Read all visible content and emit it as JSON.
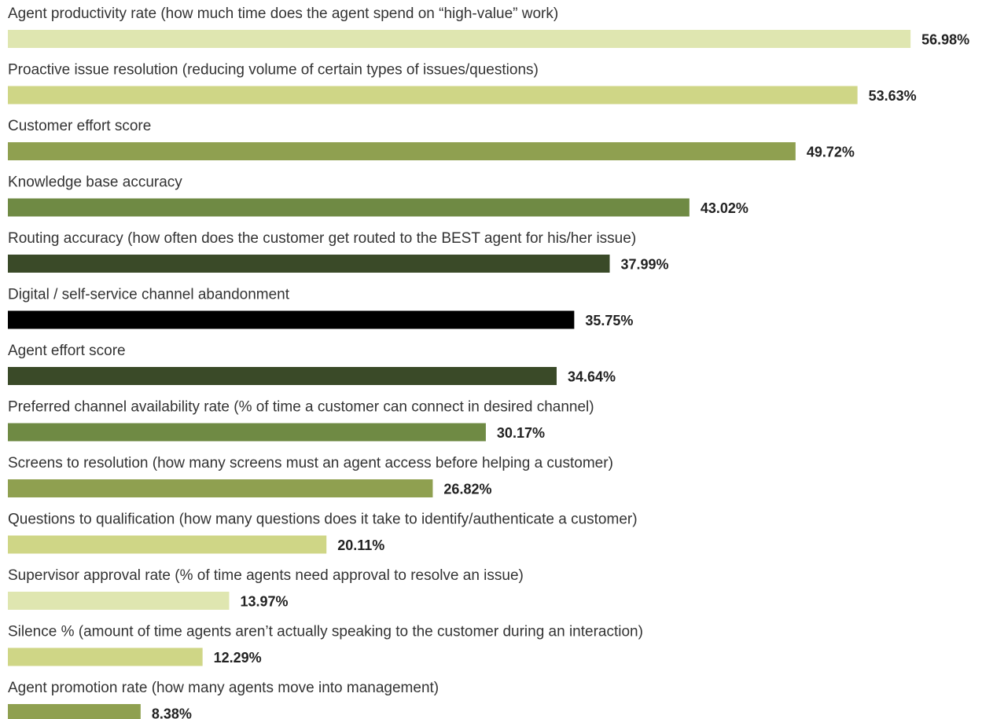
{
  "chart_data": {
    "type": "bar",
    "orientation": "horizontal",
    "categories": [
      "Agent productivity rate (how much time does the agent spend on “high-value” work)",
      "Proactive issue resolution (reducing volume of certain types of issues/questions)",
      "Customer effort score",
      "Knowledge base accuracy",
      "Routing accuracy (how often does the customer get routed to the BEST agent for his/her issue)",
      "Digital / self-service channel abandonment",
      "Agent effort score",
      "Preferred channel availability rate (% of time a customer can connect in desired channel)",
      "Screens to resolution (how many screens must an agent access before helping a customer)",
      "Questions to qualification (how many questions does it take to identify/authenticate a customer)",
      "Supervisor approval rate (% of time agents need approval to resolve an issue)",
      "Silence % (amount of time agents aren’t actually speaking to the customer during an interaction)",
      "Agent promotion rate (how many agents move into management)"
    ],
    "values": [
      56.98,
      53.63,
      49.72,
      43.02,
      37.99,
      35.75,
      34.64,
      30.17,
      26.82,
      20.11,
      13.97,
      12.29,
      8.38
    ],
    "value_labels": [
      "56.98%",
      "53.63%",
      "49.72%",
      "43.02%",
      "37.99%",
      "35.75%",
      "34.64%",
      "30.17%",
      "26.82%",
      "20.11%",
      "13.97%",
      "12.29%",
      "8.38%"
    ],
    "colors": [
      "#dfe6b0",
      "#cfd686",
      "#8fa050",
      "#6f8a44",
      "#3a4a28",
      "#000000",
      "#3a4a28",
      "#6f8a44",
      "#8fa050",
      "#cfd686",
      "#dfe6b0",
      "#cfd686",
      "#8fa050"
    ]
  }
}
